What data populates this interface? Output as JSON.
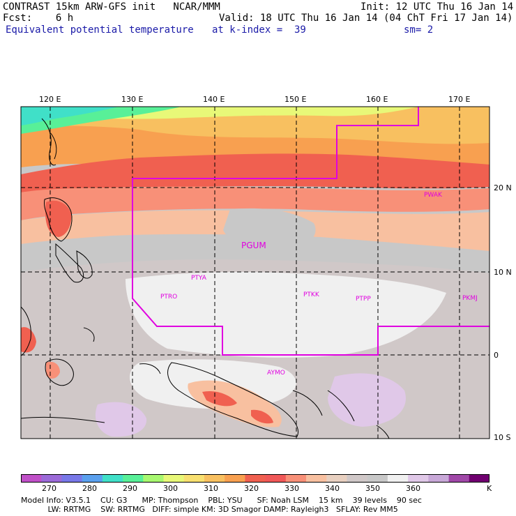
{
  "header": {
    "line1_left": "CONTRAST 15km ARW-GFS init   NCAR/MMM",
    "line1_right": "Init: 12 UTC Thu 16 Jan 14",
    "line2_left": "Fcst:    6 h",
    "line2_right": "Valid: 18 UTC Thu 16 Jan 14 (04 ChT Fri 17 Jan 14)",
    "line3_field": "Equivalent potential temperature",
    "line3_level": "at k-index =  39",
    "line3_smooth": "sm= 2"
  },
  "map": {
    "lon_ticks": [
      "120 E",
      "130 E",
      "140 E",
      "150 E",
      "160 E",
      "170 E"
    ],
    "lat_ticks": [
      "20 N",
      "10 N",
      "0",
      "10 S"
    ],
    "stations": [
      "PWAK",
      "PGUM",
      "PTYA",
      "PTRO",
      "PTKK",
      "PTPP",
      "PKMJ",
      "AYMO"
    ],
    "colors": {
      "region_line": "#e000e0",
      "station_text": "#e000e0"
    }
  },
  "colorbar": {
    "labels": [
      "270",
      "280",
      "290",
      "300",
      "310",
      "320",
      "330",
      "340",
      "350",
      "360"
    ],
    "unit": "K",
    "colors": [
      "#c050c8",
      "#9b6ad8",
      "#7878e8",
      "#5aa0ee",
      "#40e0c8",
      "#58f098",
      "#a8f870",
      "#e8f878",
      "#f8e070",
      "#f8c060",
      "#f8a050",
      "#f06050",
      "#f05858",
      "#f89078",
      "#f8c0a0",
      "#e8d0c0",
      "#d0c8c8",
      "#c8c8c8",
      "#f0f0f0",
      "#e0c8e8",
      "#c8a8d8",
      "#a048a8",
      "#700070"
    ]
  },
  "footer": {
    "line1": "Model Info: V3.5.1    CU: G3      MP: Thompson    PBL: YSU      SF: Noah LSM    15 km    39 levels    90 sec",
    "line2": "           LW: RRTMG    SW: RRTMG   DIFF: simple KM: 3D Smagor DAMP: Rayleigh3   SFLAY: Rev MM5"
  }
}
